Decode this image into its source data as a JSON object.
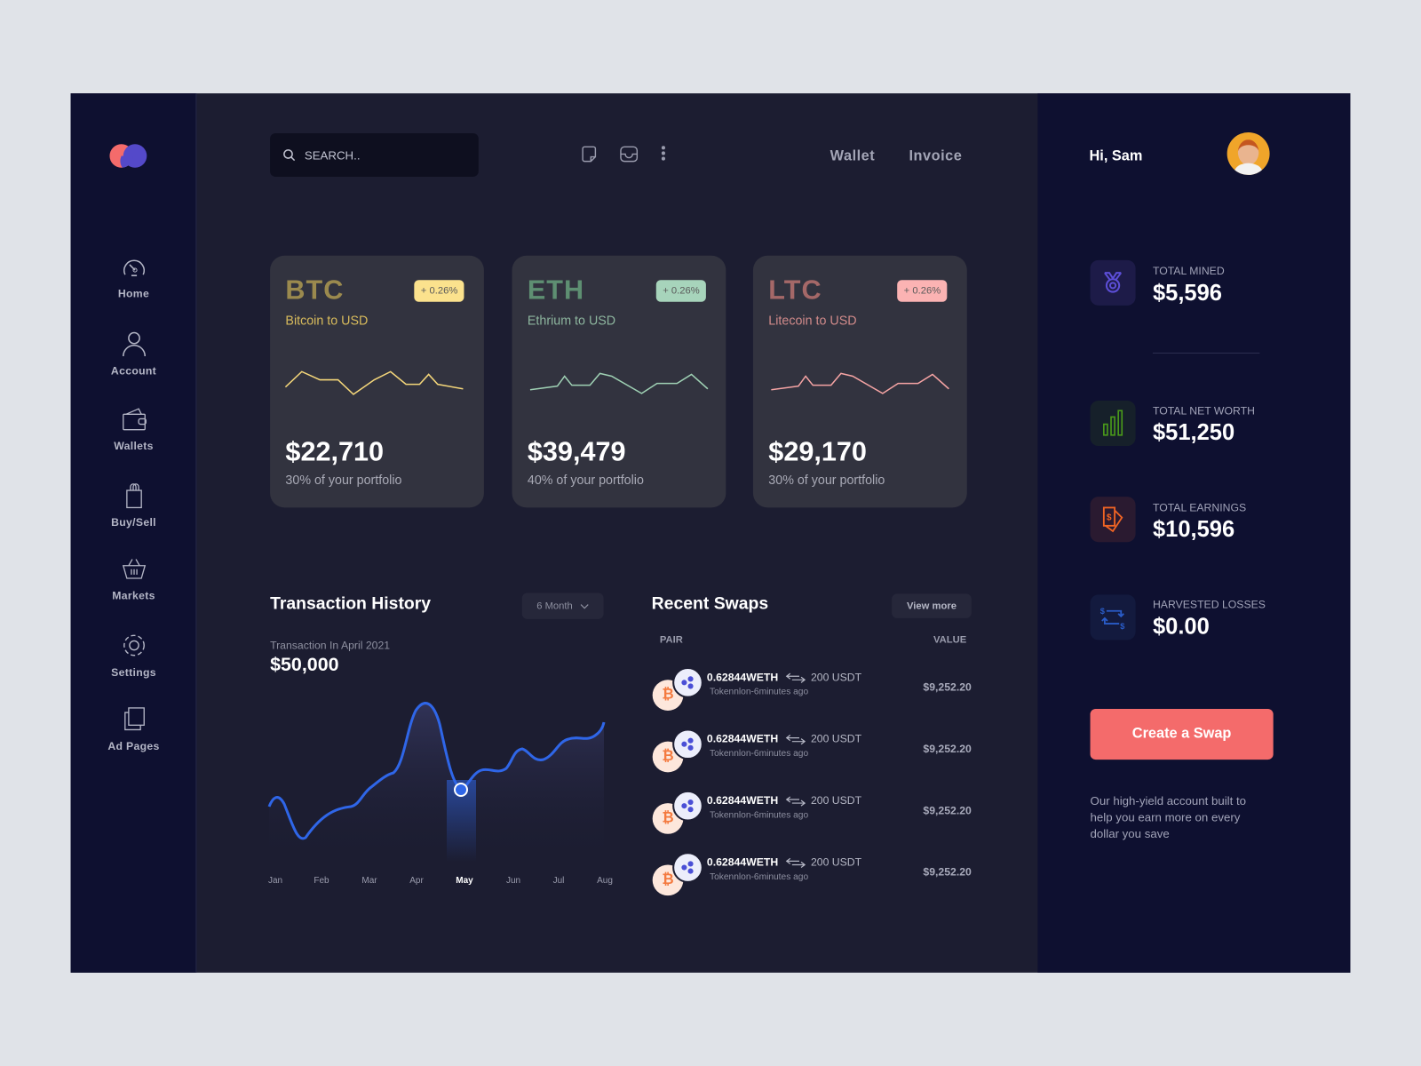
{
  "app": {
    "logo": "two-circles-logo"
  },
  "sidebar": {
    "items": [
      {
        "label": "Home",
        "icon": "speedometer-icon"
      },
      {
        "label": "Account",
        "icon": "user-icon"
      },
      {
        "label": "Wallets",
        "icon": "wallet-icon"
      },
      {
        "label": "Buy/Sell",
        "icon": "shopping-bag-icon"
      },
      {
        "label": "Markets",
        "icon": "basket-icon"
      },
      {
        "label": "Settings",
        "icon": "gear-icon"
      },
      {
        "label": "Ad Pages",
        "icon": "pages-icon"
      }
    ]
  },
  "header": {
    "search_placeholder": "SEARCH..",
    "icons": [
      "note-icon",
      "inbox-icon",
      "more-vertical-icon"
    ],
    "links": [
      "Wallet",
      "Invoice"
    ]
  },
  "cards": [
    {
      "symbol": "BTC",
      "name": "Bitcoin to USD",
      "change": "+ 0.26%",
      "price": "$22,710",
      "portfolio": "30% of your portfolio",
      "color": "#f5d77a",
      "symbol_color": "#9b8a4e",
      "badge_bg": "#fbe28d"
    },
    {
      "symbol": "ETH",
      "name": "Ethrium to USD",
      "change": "+ 0.26%",
      "price": "$39,479",
      "portfolio": "40% of your portfolio",
      "color": "#9fd1b4",
      "symbol_color": "#5e8f72",
      "badge_bg": "#a7d4bb"
    },
    {
      "symbol": "LTC",
      "name": "Litecoin to USD",
      "change": "+ 0.26%",
      "price": "$29,170",
      "portfolio": "30% of your portfolio",
      "color": "#f6a4a4",
      "symbol_color": "#a56868",
      "badge_bg": "#fbb3b3"
    }
  ],
  "transactions": {
    "title": "Transaction History",
    "period": "6 Month",
    "caption": "Transaction In April 2021",
    "amount": "$50,000",
    "months": [
      "Jan",
      "Feb",
      "Mar",
      "Apr",
      "May",
      "Jun",
      "Jul",
      "Aug"
    ],
    "selected_month": "May",
    "line_color": "#2f66e8"
  },
  "swaps": {
    "title": "Recent Swaps",
    "view_more": "View more",
    "col_pair": "PAIR",
    "col_value": "VALUE",
    "rows": [
      {
        "from": "0.62844WETH",
        "to": "200 USDT",
        "meta": "Tokennlon-6minutes ago",
        "value": "$9,252.20"
      },
      {
        "from": "0.62844WETH",
        "to": "200 USDT",
        "meta": "Tokennlon-6minutes ago",
        "value": "$9,252.20"
      },
      {
        "from": "0.62844WETH",
        "to": "200 USDT",
        "meta": "Tokennlon-6minutes ago",
        "value": "$9,252.20"
      },
      {
        "from": "0.62844WETH",
        "to": "200 USDT",
        "meta": "Tokennlon-6minutes ago",
        "value": "$9,252.20"
      }
    ]
  },
  "profile": {
    "greeting": "Hi, Sam",
    "avatar": "avatar"
  },
  "stats": [
    {
      "label": "TOTAL MINED",
      "value": "$5,596",
      "icon": "medal-icon"
    },
    {
      "label": "TOTAL NET WORTH",
      "value": "$51,250",
      "icon": "bar-chart-icon"
    },
    {
      "label": "TOTAL EARNINGS",
      "value": "$10,596",
      "icon": "money-icon"
    },
    {
      "label": "HARVESTED LOSSES",
      "value": "$0.00",
      "icon": "exchange-icon"
    }
  ],
  "cta": {
    "label": "Create a Swap",
    "description": "Our high-yield account built to help you earn more on every dollar you save"
  }
}
